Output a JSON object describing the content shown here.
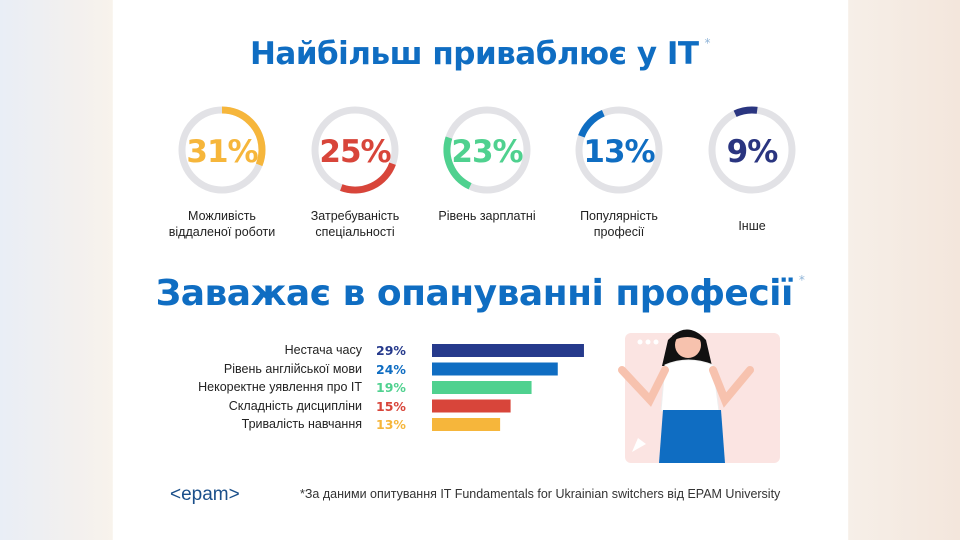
{
  "chart_data": [
    {
      "type": "donut",
      "title": "Найбільш приваблює у ІТ",
      "title_mark": "*",
      "items": [
        {
          "label": "Можливість віддаленої роботи",
          "value": 31,
          "text": "31%",
          "color": "#f6b63b"
        },
        {
          "label": "Затребуваність спеціальності",
          "value": 25,
          "text": "25%",
          "color": "#d8453a"
        },
        {
          "label": "Рівень зарплатні",
          "value": 23,
          "text": "23%",
          "color": "#4fd18f"
        },
        {
          "label": "Популярність професії",
          "value": 13,
          "text": "13%",
          "color": "#0f6dc2"
        },
        {
          "label": "Інше",
          "value": 9,
          "text": "9%",
          "color": "#2a3580"
        }
      ]
    },
    {
      "type": "bar",
      "orientation": "horizontal",
      "title": "Заважає в опануванні професії",
      "title_mark": "*",
      "categories": [
        "Нестача часу",
        "Рівень англійської мови",
        "Некоректне уявлення про ІТ",
        "Складність дисципліни",
        "Тривалість навчання"
      ],
      "values": [
        29,
        24,
        19,
        15,
        13
      ],
      "texts": [
        "29%",
        "24%",
        "19%",
        "15%",
        "13%"
      ],
      "colors": [
        "#263a8c",
        "#0f6dc2",
        "#4fd18f",
        "#d8453a",
        "#f6b63b"
      ]
    }
  ],
  "footer": {
    "logo": "<epam>",
    "note": "*За даними опитування IT Fundamentals for Ukrainian switchers від EPAM University"
  }
}
